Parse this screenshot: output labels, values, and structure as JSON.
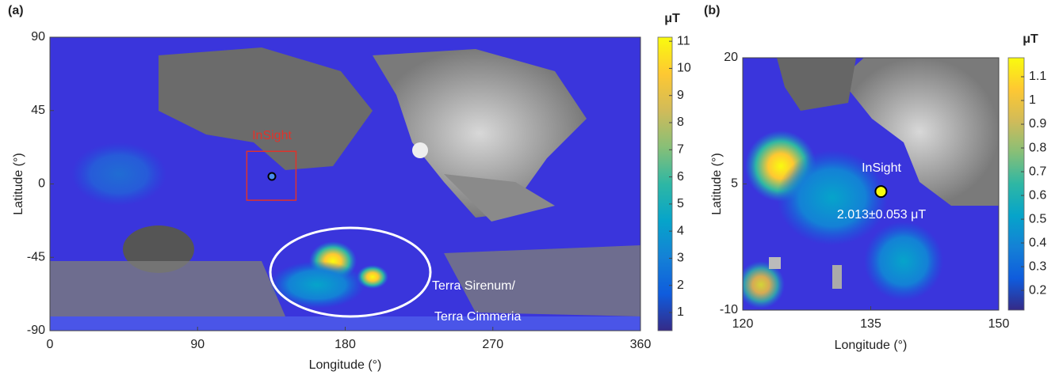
{
  "chart_data": [
    {
      "type": "heatmap",
      "panel_label": "(a)",
      "xlabel": "Longitude (°)",
      "ylabel": "Latitude (°)",
      "xlim": [
        0,
        360
      ],
      "xticks": [
        0,
        90,
        180,
        270,
        360
      ],
      "ylim": [
        -90,
        90
      ],
      "yticks": [
        -90,
        -45,
        0,
        45,
        90
      ],
      "colorbar_label": "μT",
      "colorbar_lim": [
        0.33,
        11.15
      ],
      "colorbar_ticks": [
        1,
        2,
        3,
        4,
        5,
        6,
        7,
        8,
        9,
        10,
        11
      ],
      "colormap": [
        "#352a87",
        "#0f5cdd",
        "#1481d6",
        "#06a4ca",
        "#2eb7a4",
        "#87bf77",
        "#d1bb59",
        "#fec832",
        "#f9fb0e"
      ],
      "points": {
        "x": [
          135.3
        ],
        "y": [
          4.6
        ],
        "color": "#4a8cf0"
      },
      "annotations": [
        "InSight",
        "Terra Sirenum/",
        "Terra Cimmeria"
      ]
    },
    {
      "type": "heatmap",
      "panel_label": "(b)",
      "xlabel": "Longitude (°)",
      "ylabel": "Latitude (°)",
      "xlim": [
        120,
        150
      ],
      "xticks": [
        120,
        135,
        150
      ],
      "ylim": [
        -10,
        20
      ],
      "yticks": [
        -10,
        5,
        20
      ],
      "colorbar_label": "μT",
      "colorbar_lim": [
        0.117,
        1.18
      ],
      "colorbar_ticks": [
        0.2,
        0.3,
        0.4,
        0.5,
        0.6,
        0.7,
        0.8,
        0.9,
        1,
        1.1
      ],
      "colormap": [
        "#352a87",
        "#0f5cdd",
        "#1481d6",
        "#06a4ca",
        "#2eb7a4",
        "#87bf77",
        "#d1bb59",
        "#fec832",
        "#f9fb0e"
      ],
      "points": {
        "x": [
          136.2
        ],
        "y": [
          4.1
        ],
        "color": "#f9fb0e"
      },
      "annotations": [
        "InSight",
        "2.013±0.053 μT"
      ]
    }
  ]
}
